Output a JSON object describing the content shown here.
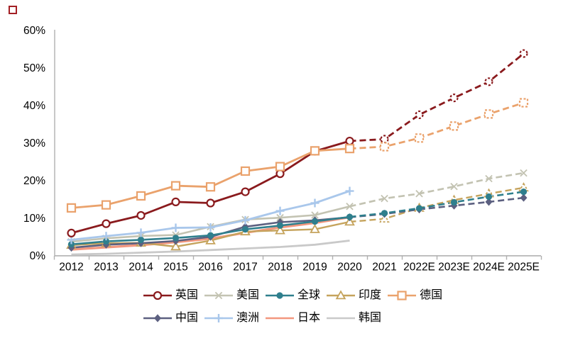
{
  "figure": {
    "logo_color": "#a31f24",
    "background": "#ffffff",
    "axis_color": "#b0b0b0",
    "text_color": "#000000"
  },
  "chart_data": {
    "type": "line",
    "title": "",
    "xlabel": "",
    "ylabel": "",
    "categories": [
      "2012",
      "2013",
      "2014",
      "2015",
      "2016",
      "2017",
      "2018",
      "2019",
      "2020",
      "2021",
      "2022E",
      "2023E",
      "2024E",
      "2025E"
    ],
    "y_ticks": [
      "0%",
      "10%",
      "20%",
      "30%",
      "40%",
      "50%",
      "60%"
    ],
    "y_values": [
      0,
      10,
      20,
      30,
      40,
      50,
      60
    ],
    "ylim": [
      0,
      60
    ],
    "grid": false,
    "legend_position": "bottom",
    "note": "dashed segments from 2020 onward are estimates (E)",
    "series": [
      {
        "id": "korea",
        "name": "韩国",
        "color": "#c9c9c9",
        "marker": "none",
        "width": 2.8,
        "dashed_from": null,
        "values": [
          0.3,
          0.5,
          0.8,
          1.1,
          1.5,
          1.9,
          2.3,
          2.9,
          4.0,
          null,
          null,
          null,
          null,
          null
        ]
      },
      {
        "id": "japan",
        "name": "日本",
        "color": "#f3977e",
        "marker": "none",
        "width": 3.2,
        "dashed_from": null,
        "values": [
          1.6,
          2.2,
          2.8,
          3.6,
          4.5,
          6.1,
          7.5,
          8.7,
          10.2,
          null,
          null,
          null,
          null,
          null
        ]
      },
      {
        "id": "us",
        "name": "美国",
        "color": "#c3c3b2",
        "marker": "x",
        "width": 2.6,
        "dashed_from": 8,
        "values": [
          3.7,
          4.6,
          5.2,
          5.5,
          7.7,
          9.6,
          10.1,
          10.8,
          13.1,
          15.2,
          16.5,
          18.4,
          20.5,
          22.0
        ]
      },
      {
        "id": "india",
        "name": "印度",
        "color": "#c5a35c",
        "marker": "triangle-open",
        "width": 2.4,
        "dashed_from": 8,
        "values": [
          2.8,
          3.3,
          3.4,
          2.4,
          4.0,
          6.4,
          6.7,
          7.0,
          9.0,
          9.8,
          12.7,
          14.8,
          16.5,
          18.1
        ]
      },
      {
        "id": "china",
        "name": "中国",
        "color": "#5c6080",
        "marker": "diamond",
        "width": 2.6,
        "dashed_from": 8,
        "values": [
          2.1,
          2.9,
          3.3,
          3.9,
          5.0,
          7.7,
          8.9,
          9.4,
          10.2,
          11.1,
          12.3,
          13.3,
          14.3,
          15.4
        ]
      },
      {
        "id": "global",
        "name": "全球",
        "color": "#2f7f8d",
        "marker": "dot",
        "width": 2.6,
        "dashed_from": 8,
        "values": [
          3.0,
          3.8,
          4.2,
          4.7,
          5.4,
          7.0,
          8.0,
          9.1,
          10.3,
          11.3,
          12.6,
          14.2,
          15.7,
          17.0
        ]
      },
      {
        "id": "australia",
        "name": "澳洲",
        "color": "#a9c7eb",
        "marker": "plus",
        "width": 2.8,
        "dashed_from": null,
        "values": [
          4.2,
          5.2,
          6.1,
          7.4,
          7.5,
          9.4,
          11.9,
          14.0,
          17.2,
          null,
          null,
          null,
          null,
          null
        ]
      },
      {
        "id": "uk",
        "name": "英国",
        "color": "#8a1a1d",
        "marker": "circle-open",
        "width": 2.8,
        "dashed_from": 8,
        "values": [
          6.0,
          8.5,
          10.7,
          14.3,
          14.0,
          17.0,
          21.8,
          27.8,
          30.5,
          31.0,
          37.5,
          42.0,
          46.3,
          53.8
        ]
      },
      {
        "id": "germany",
        "name": "德国",
        "color": "#eaa26c",
        "marker": "square-open",
        "width": 2.8,
        "dashed_from": 8,
        "values": [
          12.7,
          13.5,
          15.9,
          18.6,
          18.3,
          22.5,
          23.7,
          27.9,
          28.5,
          29.0,
          31.3,
          34.5,
          37.7,
          40.7
        ]
      }
    ],
    "legend_rows": [
      [
        "uk",
        "us",
        "global",
        "india",
        "germany"
      ],
      [
        "china",
        "australia",
        "japan",
        "korea"
      ]
    ]
  }
}
